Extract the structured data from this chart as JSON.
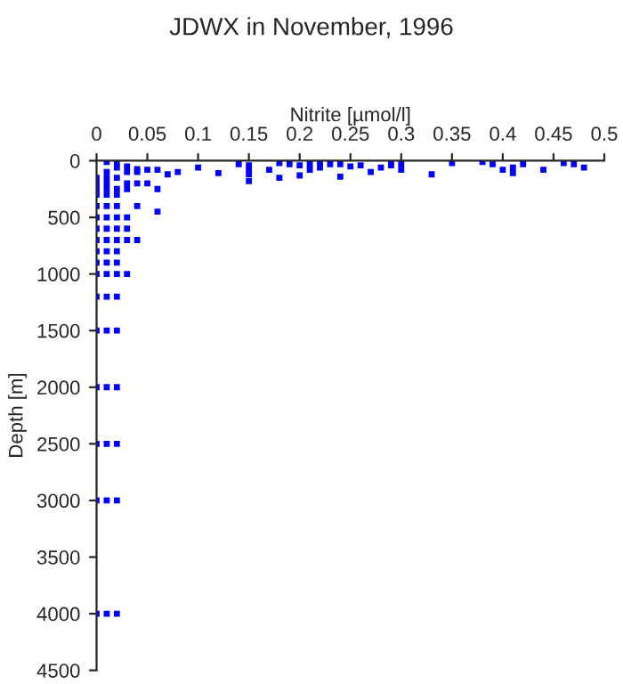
{
  "chart_data": {
    "type": "scatter",
    "title": "JDWX in November, 1996",
    "xlabel": "Nitrite [µmol/l]",
    "ylabel": "Depth [m]",
    "xlim": [
      0,
      0.5
    ],
    "xticks": [
      0,
      0.05,
      0.1,
      0.15,
      0.2,
      0.25,
      0.3,
      0.35,
      0.4,
      0.45,
      0.5
    ],
    "ylim": [
      4500,
      0
    ],
    "yticks": [
      0,
      500,
      1000,
      1500,
      2000,
      2500,
      3000,
      3500,
      4000,
      4500
    ],
    "grid": false,
    "legend": false,
    "marker": "square",
    "series": [
      {
        "color": "#0000ff",
        "x": [
          0.01,
          0.02,
          0.03,
          0.04,
          0.05,
          0.06,
          0.07,
          0.08,
          0.1,
          0.12,
          0.15,
          0.15,
          0.15,
          0.15,
          0.14,
          0.17,
          0.18,
          0.18,
          0.19,
          0.2,
          0.2,
          0.21,
          0.21,
          0.22,
          0.22,
          0.23,
          0.24,
          0.24,
          0.25,
          0.26,
          0.27,
          0.28,
          0.29,
          0.29,
          0.3,
          0.3,
          0.33,
          0.35,
          0.38,
          0.39,
          0.4,
          0.41,
          0.41,
          0.42,
          0.44,
          0.46,
          0.47,
          0.48,
          0,
          0,
          0,
          0,
          0,
          0,
          0,
          0,
          0,
          0,
          0,
          0,
          0,
          0,
          0,
          0,
          0,
          0.01,
          0.01,
          0.01,
          0.01,
          0.01,
          0.01,
          0.01,
          0.01,
          0.01,
          0.01,
          0.01,
          0.01,
          0.01,
          0.01,
          0.01,
          0.01,
          0.01,
          0.01,
          0.02,
          0.02,
          0.02,
          0.02,
          0.02,
          0.02,
          0.02,
          0.02,
          0.02,
          0.02,
          0.02,
          0.02,
          0.02,
          0.02,
          0.02,
          0.02,
          0.02,
          0.03,
          0.03,
          0.03,
          0.03,
          0.03,
          0.03,
          0.03,
          0.04,
          0.04,
          0.04,
          0.04,
          0.05,
          0.06,
          0.06
        ],
        "values": [
          10,
          20,
          50,
          75,
          80,
          80,
          120,
          100,
          60,
          110,
          40,
          80,
          120,
          180,
          30,
          80,
          20,
          150,
          30,
          40,
          130,
          30,
          80,
          20,
          60,
          30,
          30,
          140,
          50,
          40,
          100,
          60,
          20,
          40,
          30,
          80,
          120,
          20,
          10,
          30,
          80,
          110,
          60,
          30,
          80,
          20,
          30,
          60,
          150,
          200,
          250,
          300,
          400,
          500,
          600,
          700,
          800,
          900,
          1000,
          1200,
          1500,
          2000,
          2500,
          3000,
          4000,
          100,
          150,
          200,
          250,
          300,
          400,
          500,
          600,
          700,
          800,
          900,
          1000,
          1200,
          1500,
          2000,
          2500,
          3000,
          4000,
          60,
          150,
          250,
          300,
          400,
          500,
          600,
          700,
          800,
          900,
          1000,
          1200,
          1500,
          2000,
          2500,
          3000,
          4000,
          100,
          200,
          250,
          500,
          600,
          700,
          1000,
          100,
          200,
          400,
          700,
          200,
          250,
          450
        ]
      }
    ]
  }
}
